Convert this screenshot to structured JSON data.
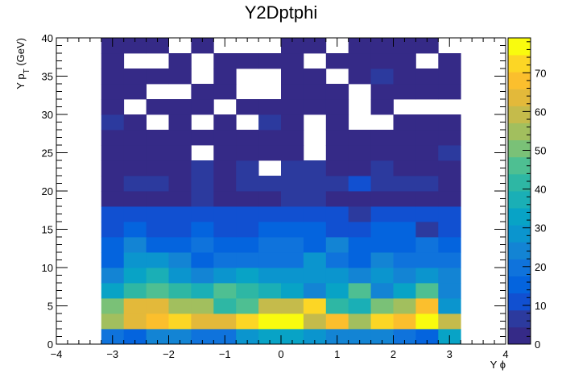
{
  "chart_data": {
    "type": "heatmap",
    "title": "Y2Dptphi",
    "xlabel": "Y  ϕ",
    "ylabel": "Y p_T (GeV)",
    "xlim": [
      -4,
      4
    ],
    "ylim": [
      0,
      40
    ],
    "x_ticks": [
      "−4",
      "−3",
      "−2",
      "−1",
      "0",
      "1",
      "2",
      "3",
      "4"
    ],
    "y_ticks": [
      "0",
      "5",
      "10",
      "15",
      "20",
      "25",
      "30",
      "35",
      "40"
    ],
    "colorbar_ticks": [
      "0",
      "10",
      "20",
      "30",
      "40",
      "50",
      "60",
      "70"
    ],
    "zlim": [
      0,
      79
    ],
    "x_bin_edges": [
      -3.2,
      -2.8,
      -2.4,
      -2.0,
      -1.6,
      -1.2,
      -0.8,
      -0.4,
      0.0,
      0.4,
      0.8,
      1.2,
      1.6,
      2.0,
      2.4,
      2.8,
      3.2
    ],
    "y_bin_width": 2,
    "z_rows_from_bottom": [
      [
        18,
        17,
        24,
        24,
        18,
        19,
        28,
        34,
        35,
        30,
        25,
        24,
        23,
        20,
        15,
        33
      ],
      [
        55,
        62,
        70,
        72,
        62,
        62,
        73,
        77,
        79,
        58,
        68,
        55,
        73,
        70,
        76,
        60
      ],
      [
        50,
        62,
        63,
        55,
        55,
        42,
        48,
        58,
        58,
        72,
        40,
        37,
        50,
        55,
        70,
        27
      ],
      [
        32,
        40,
        48,
        43,
        38,
        48,
        42,
        38,
        35,
        24,
        34,
        44,
        22,
        35,
        44,
        22
      ],
      [
        23,
        33,
        38,
        30,
        26,
        28,
        33,
        30,
        29,
        29,
        27,
        26,
        30,
        25,
        27,
        23
      ],
      [
        17,
        27,
        27,
        24,
        17,
        18,
        18,
        21,
        21,
        27,
        19,
        15,
        25,
        19,
        19,
        20
      ],
      [
        17,
        23,
        15,
        17,
        21,
        17,
        14,
        18,
        18,
        17,
        22,
        16,
        15,
        14,
        18,
        16
      ],
      [
        12,
        15,
        13,
        12,
        15,
        10,
        11,
        14,
        14,
        14,
        13,
        12,
        14,
        14,
        8,
        10
      ],
      [
        9,
        9,
        10,
        11,
        11,
        12,
        10,
        9,
        9,
        10,
        9,
        8,
        9,
        9,
        11,
        9
      ],
      [
        3,
        3,
        3,
        3,
        5,
        3,
        3,
        4,
        5,
        5,
        3,
        3,
        3,
        4,
        4,
        3
      ],
      [
        3,
        7,
        7,
        4,
        8,
        4,
        5,
        7,
        6,
        8,
        7,
        9,
        5,
        8,
        5,
        3
      ],
      [
        3,
        3,
        3,
        3,
        8,
        3,
        6,
        0,
        6,
        6,
        3,
        3,
        7,
        3,
        3,
        4
      ],
      [
        3,
        3,
        3,
        3,
        0,
        3,
        4,
        3,
        3,
        0,
        3,
        3,
        4,
        3,
        3,
        7
      ],
      [
        3,
        3,
        3,
        3,
        3,
        3,
        4,
        3,
        3,
        0,
        3,
        3,
        4,
        3,
        3,
        3
      ],
      [
        5,
        3,
        0,
        3,
        0,
        3,
        0,
        5,
        3,
        0,
        3,
        0,
        0,
        3,
        3,
        3
      ],
      [
        3,
        0,
        3,
        3,
        3,
        0,
        3,
        3,
        3,
        3,
        3,
        0,
        3,
        0,
        0,
        0
      ],
      [
        3,
        3,
        0,
        0,
        3,
        3,
        0,
        0,
        3,
        3,
        3,
        0,
        3,
        3,
        3,
        3
      ],
      [
        3,
        3,
        3,
        3,
        0,
        3,
        0,
        0,
        3,
        3,
        0,
        3,
        5,
        3,
        3,
        3
      ],
      [
        3,
        0,
        0,
        3,
        0,
        3,
        3,
        3,
        3,
        0,
        3,
        3,
        3,
        3,
        0,
        3
      ],
      [
        3,
        3,
        3,
        0,
        3,
        0,
        0,
        0,
        3,
        3,
        0,
        3,
        3,
        3,
        3,
        0
      ]
    ],
    "palette": [
      "#352a87",
      "#2c3a9e",
      "#1150d1",
      "#0464de",
      "#0f73dc",
      "#1384d4",
      "#0b95ce",
      "#08a3c6",
      "#1aafb6",
      "#2eb7a4",
      "#4ebf92",
      "#7ac177",
      "#a2bf5e",
      "#c5bb4b",
      "#e3b93a",
      "#fbbf2d",
      "#fcd625",
      "#f9fb0e"
    ]
  }
}
